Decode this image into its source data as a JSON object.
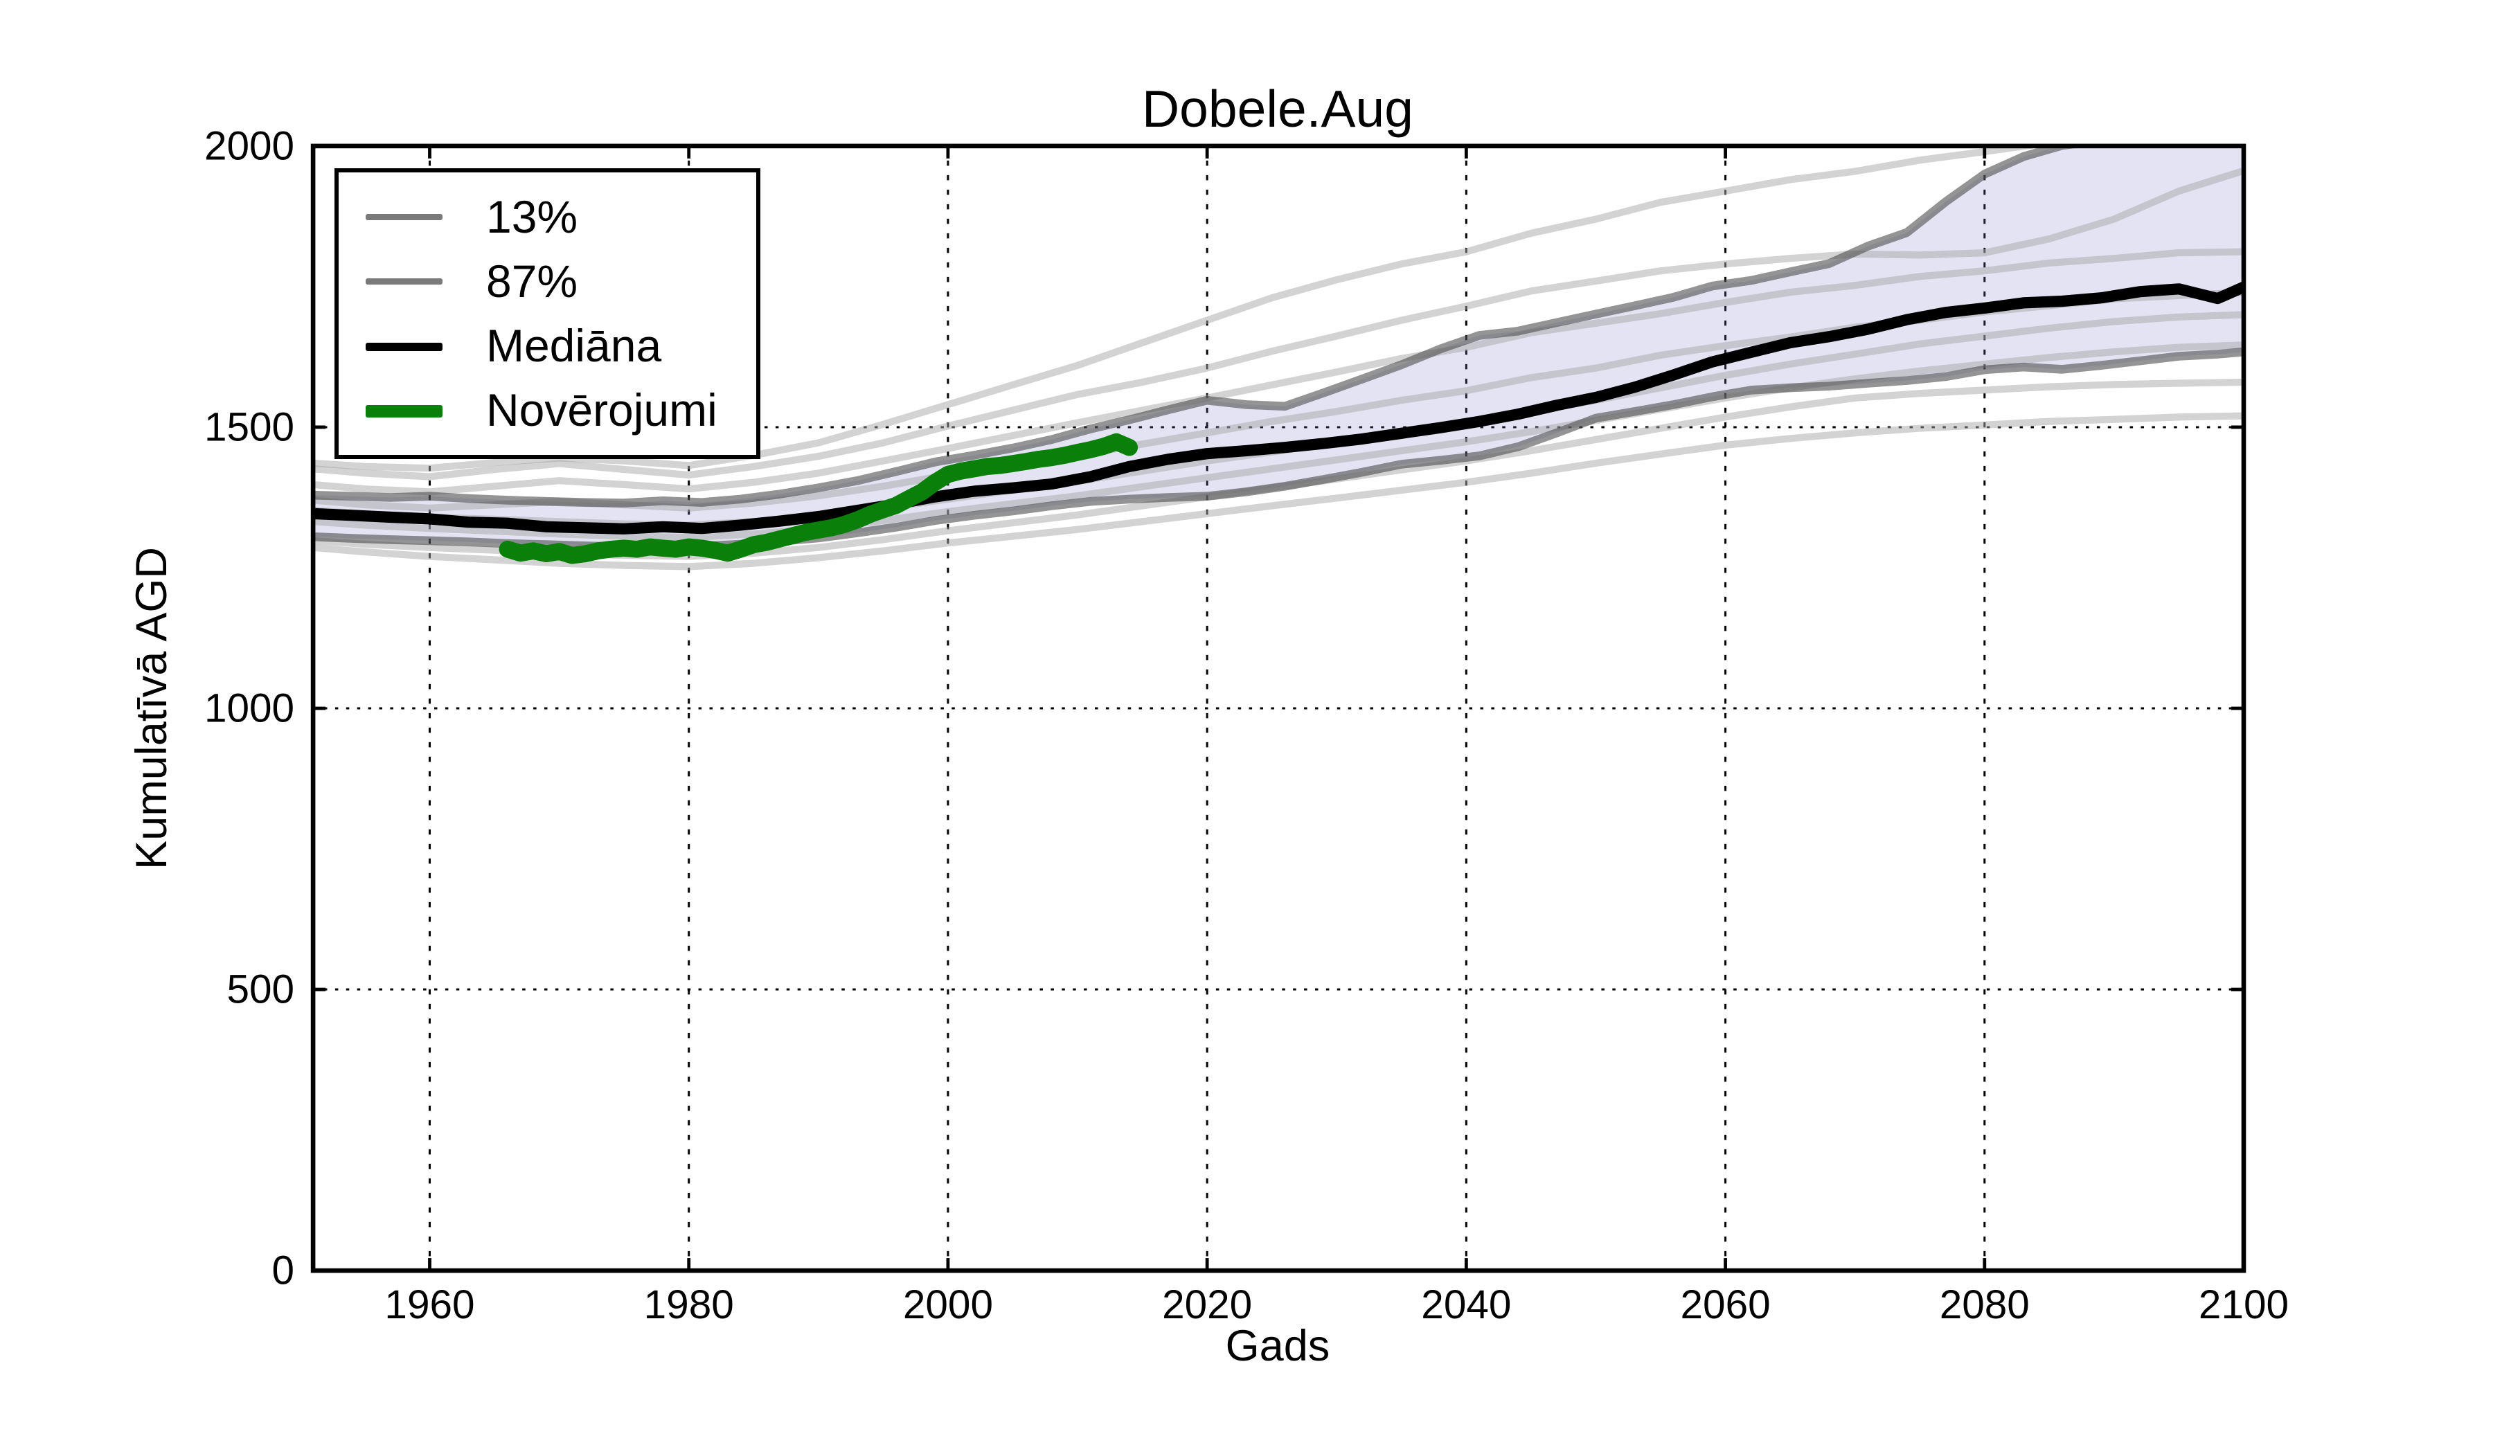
{
  "title": "Dobele.Aug",
  "axes": {
    "xlabel": "Gads",
    "ylabel": "Kumulatīvā AGD",
    "xlim": [
      1951,
      2100
    ],
    "ylim": [
      0,
      2000
    ],
    "xticks": [
      1960,
      1980,
      2000,
      2020,
      2040,
      2060,
      2080,
      2100
    ],
    "yticks": [
      0,
      500,
      1000,
      1500,
      2000
    ],
    "grid": "dotted"
  },
  "legend": {
    "position": "upper-left",
    "items": [
      {
        "label": "13%",
        "color": "#7a7a7a",
        "thickness": 3
      },
      {
        "label": "87%",
        "color": "#7a7a7a",
        "thickness": 3
      },
      {
        "label": "Mediāna",
        "color": "#000000",
        "thickness": 4
      },
      {
        "label": "Novērojumi",
        "color": "#0a800a",
        "thickness": 6
      }
    ]
  },
  "colors": {
    "background": "#ffffff",
    "spine": "#000000",
    "grid": "#000000",
    "band_fill": "#8080cc",
    "band_fill_opacity": 0.22,
    "percentile_line": "#4d4d4d",
    "percentile_opacity": 0.6,
    "ensemble_line": "#a8a8a8",
    "ensemble_opacity": 0.5,
    "median_line": "#000000",
    "observations_line": "#0a800a"
  },
  "chart_data": {
    "type": "line",
    "title": "Dobele.Aug",
    "xlabel": "Gads",
    "ylabel": "Kumulatīvā AGD",
    "xlim": [
      1951,
      2100
    ],
    "ylim": [
      0,
      2000
    ],
    "xticks": [
      1960,
      1980,
      2000,
      2020,
      2040,
      2060,
      2080,
      2100
    ],
    "yticks": [
      0,
      500,
      1000,
      1500,
      2000
    ],
    "grid": true,
    "legend_position": "upper-left",
    "band": {
      "name": "13-87% percentile band",
      "years": [
        1951,
        1954,
        1957,
        1960,
        1963,
        1966,
        1969,
        1972,
        1975,
        1978,
        1981,
        1984,
        1987,
        1990,
        1993,
        1996,
        1999,
        2002,
        2005,
        2008,
        2011,
        2014,
        2017,
        2020,
        2023,
        2026,
        2029,
        2032,
        2035,
        2038,
        2041,
        2044,
        2047,
        2050,
        2053,
        2056,
        2059,
        2062,
        2065,
        2068,
        2071,
        2074,
        2077,
        2080,
        2083,
        2086,
        2089,
        2092,
        2095,
        2098,
        2100
      ],
      "lower_13": [
        1305,
        1302,
        1300,
        1298,
        1296,
        1293,
        1291,
        1289,
        1287,
        1291,
        1288,
        1292,
        1297,
        1303,
        1312,
        1322,
        1334,
        1343,
        1351,
        1360,
        1368,
        1372,
        1375,
        1377,
        1385,
        1395,
        1407,
        1420,
        1434,
        1441,
        1449,
        1465,
        1490,
        1516,
        1528,
        1540,
        1554,
        1566,
        1570,
        1573,
        1578,
        1583,
        1590,
        1602,
        1607,
        1603,
        1610,
        1618,
        1626,
        1630,
        1634
      ],
      "upper_87": [
        1379,
        1377,
        1375,
        1377,
        1373,
        1370,
        1368,
        1366,
        1365,
        1369,
        1366,
        1372,
        1381,
        1392,
        1405,
        1421,
        1438,
        1450,
        1463,
        1478,
        1497,
        1513,
        1531,
        1548,
        1540,
        1537,
        1561,
        1586,
        1611,
        1639,
        1663,
        1671,
        1686,
        1701,
        1716,
        1731,
        1751,
        1761,
        1776,
        1791,
        1822,
        1846,
        1901,
        1950,
        1981,
        2001,
        2010,
        2015,
        2018,
        2020,
        2022
      ]
    },
    "median": {
      "name": "Mediāna",
      "years": [
        1951,
        1954,
        1957,
        1960,
        1963,
        1966,
        1969,
        1972,
        1975,
        1978,
        1981,
        1984,
        1987,
        1990,
        1993,
        1996,
        1999,
        2002,
        2005,
        2008,
        2011,
        2014,
        2017,
        2020,
        2023,
        2026,
        2029,
        2032,
        2035,
        2038,
        2041,
        2044,
        2047,
        2050,
        2053,
        2056,
        2059,
        2062,
        2065,
        2068,
        2071,
        2074,
        2077,
        2080,
        2083,
        2086,
        2089,
        2092,
        2095,
        2098,
        2100
      ],
      "values": [
        1346,
        1343,
        1340,
        1337,
        1331,
        1329,
        1323,
        1321,
        1319,
        1323,
        1320,
        1326,
        1333,
        1341,
        1352,
        1363,
        1376,
        1386,
        1392,
        1399,
        1412,
        1430,
        1443,
        1453,
        1458,
        1464,
        1471,
        1479,
        1489,
        1499,
        1510,
        1523,
        1539,
        1553,
        1571,
        1593,
        1616,
        1633,
        1650,
        1661,
        1674,
        1691,
        1704,
        1712,
        1721,
        1724,
        1730,
        1741,
        1746,
        1729,
        1749
      ]
    },
    "observations": {
      "name": "Novērojumi",
      "years": [
        1966,
        1967,
        1968,
        1969,
        1970,
        1971,
        1972,
        1973,
        1974,
        1975,
        1976,
        1977,
        1978,
        1979,
        1980,
        1981,
        1982,
        1983,
        1984,
        1985,
        1986,
        1987,
        1988,
        1989,
        1990,
        1991,
        1992,
        1993,
        1994,
        1995,
        1996,
        1997,
        1998,
        1999,
        2000,
        2001,
        2002,
        2003,
        2004,
        2005,
        2006,
        2007,
        2008,
        2009,
        2010,
        2011,
        2012,
        2013,
        2014
      ],
      "values": [
        1283,
        1276,
        1280,
        1275,
        1279,
        1272,
        1275,
        1280,
        1283,
        1285,
        1283,
        1287,
        1285,
        1283,
        1287,
        1285,
        1281,
        1276,
        1283,
        1291,
        1295,
        1301,
        1307,
        1313,
        1317,
        1321,
        1327,
        1335,
        1345,
        1353,
        1361,
        1373,
        1385,
        1402,
        1416,
        1422,
        1426,
        1430,
        1432,
        1435,
        1439,
        1443,
        1446,
        1450,
        1455,
        1460,
        1466,
        1474,
        1464
      ]
    },
    "ensemble": {
      "name": "ensemble members",
      "years": [
        1951,
        1955,
        1960,
        1965,
        1970,
        1975,
        1980,
        1985,
        1990,
        1995,
        2000,
        2005,
        2010,
        2015,
        2020,
        2025,
        2030,
        2035,
        2040,
        2045,
        2050,
        2055,
        2060,
        2065,
        2070,
        2075,
        2080,
        2085,
        2090,
        2095,
        2100
      ],
      "members": [
        [
          1436,
          1430,
          1427,
          1437,
          1445,
          1440,
          1432,
          1450,
          1472,
          1505,
          1540,
          1575,
          1610,
          1650,
          1690,
          1730,
          1762,
          1790,
          1812,
          1845,
          1870,
          1900,
          1920,
          1940,
          1955,
          1975,
          1990,
          2006,
          2020,
          2030,
          2040
        ],
        [
          1426,
          1418,
          1412,
          1425,
          1435,
          1425,
          1415,
          1430,
          1448,
          1472,
          1502,
          1530,
          1558,
          1580,
          1605,
          1635,
          1662,
          1690,
          1715,
          1742,
          1760,
          1778,
          1790,
          1800,
          1808,
          1806,
          1810,
          1835,
          1870,
          1920,
          1956
        ],
        [
          1398,
          1390,
          1385,
          1395,
          1405,
          1398,
          1390,
          1402,
          1418,
          1440,
          1462,
          1485,
          1508,
          1530,
          1552,
          1575,
          1598,
          1622,
          1642,
          1668,
          1685,
          1702,
          1722,
          1740,
          1752,
          1768,
          1778,
          1792,
          1800,
          1810,
          1812
        ],
        [
          1370,
          1362,
          1356,
          1362,
          1368,
          1362,
          1356,
          1365,
          1378,
          1395,
          1415,
          1432,
          1450,
          1470,
          1490,
          1510,
          1528,
          1548,
          1565,
          1588,
          1605,
          1628,
          1645,
          1660,
          1678,
          1690,
          1705,
          1716,
          1728,
          1734,
          1740
        ],
        [
          1352,
          1346,
          1340,
          1336,
          1332,
          1328,
          1326,
          1332,
          1342,
          1356,
          1372,
          1388,
          1404,
          1422,
          1440,
          1456,
          1472,
          1490,
          1508,
          1528,
          1548,
          1570,
          1592,
          1612,
          1630,
          1648,
          1662,
          1676,
          1688,
          1696,
          1700
        ],
        [
          1332,
          1326,
          1320,
          1315,
          1310,
          1306,
          1304,
          1310,
          1320,
          1334,
          1350,
          1364,
          1378,
          1394,
          1410,
          1426,
          1442,
          1458,
          1474,
          1492,
          1512,
          1532,
          1552,
          1570,
          1586,
          1600,
          1612,
          1624,
          1634,
          1642,
          1646
        ],
        [
          1298,
          1292,
          1286,
          1281,
          1276,
          1272,
          1270,
          1276,
          1286,
          1300,
          1316,
          1330,
          1344,
          1360,
          1376,
          1392,
          1408,
          1424,
          1440,
          1458,
          1478,
          1498,
          1518,
          1536,
          1552,
          1560,
          1566,
          1572,
          1576,
          1578,
          1580
        ],
        [
          1286,
          1278,
          1270,
          1264,
          1258,
          1254,
          1252,
          1258,
          1268,
          1280,
          1294,
          1306,
          1318,
          1332,
          1346,
          1360,
          1374,
          1388,
          1402,
          1418,
          1436,
          1452,
          1468,
          1480,
          1490,
          1498,
          1504,
          1510,
          1514,
          1518,
          1520
        ]
      ]
    }
  }
}
